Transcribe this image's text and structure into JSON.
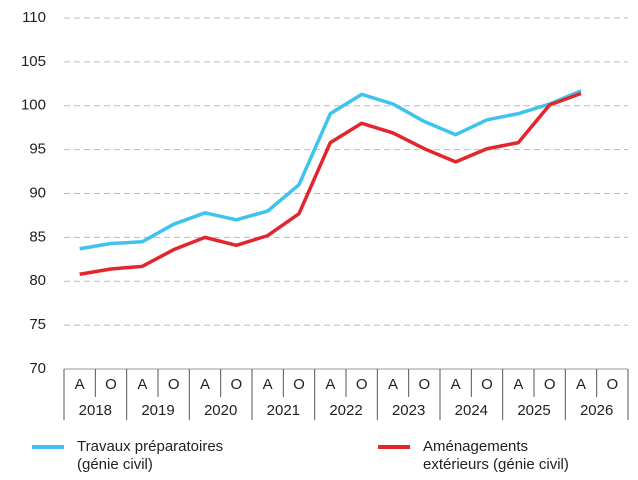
{
  "chart_data": {
    "type": "line",
    "categories": [
      "A",
      "O",
      "A",
      "O",
      "A",
      "O",
      "A",
      "O",
      "A",
      "O",
      "A",
      "O",
      "A",
      "O",
      "A",
      "O",
      "A",
      "O"
    ],
    "years": [
      "2018",
      "2019",
      "2020",
      "2021",
      "2022",
      "2023",
      "2024",
      "2025",
      "2026"
    ],
    "series": [
      {
        "name": "Travaux préparatoires\n(génie civil)",
        "color": "#3ec3ef",
        "values": [
          83.7,
          84.3,
          84.5,
          86.5,
          87.8,
          87.0,
          88.0,
          91.0,
          99.1,
          101.3,
          100.2,
          98.2,
          96.7,
          98.4,
          99.1,
          100.2,
          101.7,
          null
        ]
      },
      {
        "name": "Aménagements\nextérieurs (génie civil)",
        "color": "#e3262d",
        "values": [
          80.8,
          81.4,
          81.7,
          83.6,
          85.0,
          84.1,
          85.2,
          87.7,
          95.8,
          98.0,
          96.9,
          95.1,
          93.6,
          95.1,
          95.8,
          100.1,
          101.4,
          null
        ]
      }
    ],
    "ylim": [
      70,
      110
    ],
    "yticks": [
      70,
      75,
      80,
      85,
      90,
      95,
      100,
      105,
      110
    ],
    "grid": true
  }
}
